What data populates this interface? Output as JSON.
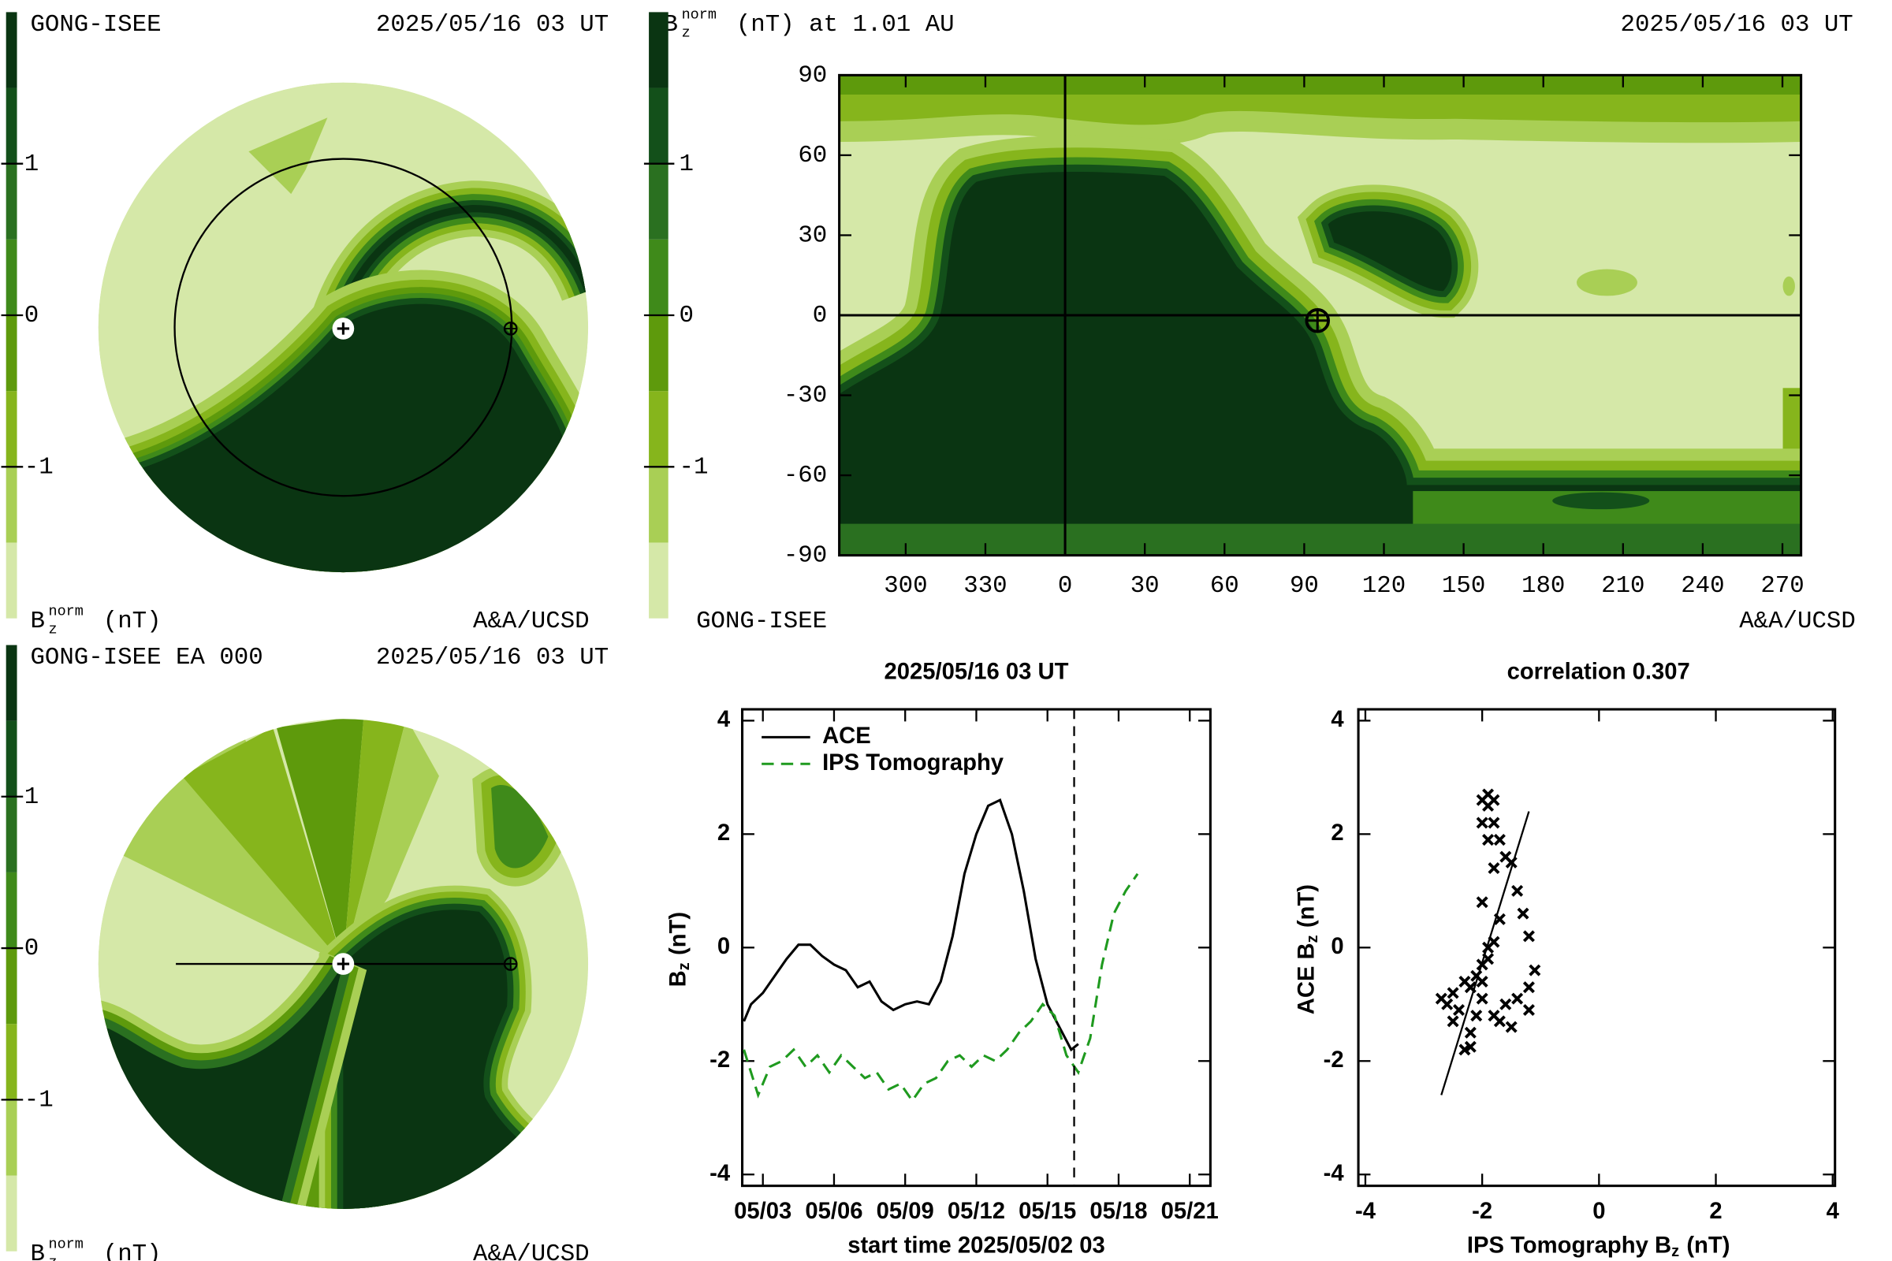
{
  "chart_data": [
    {
      "type": "polar-map",
      "source": "GONG-ISEE",
      "time": "2025/05/16 03 UT",
      "credit": "A&A/UCSD",
      "colorbar": {
        "symbol": "B",
        "sup": "norm",
        "sub": "z",
        "unit": "(nT)",
        "clim": [
          -2,
          2
        ],
        "colors": [
          "#d5e8a8",
          "#a9cf55",
          "#86b51c",
          "#5e9a0c",
          "#3f8a1a",
          "#2a7020",
          "#13501a",
          "#0a3512"
        ],
        "ticks": [
          1,
          0,
          -1
        ]
      }
    },
    {
      "type": "lat-lon-map",
      "title": {
        "symbol": "B",
        "sup": "norm",
        "sub": "z",
        "unit": "(nT) at 1.01 AU"
      },
      "time": "2025/05/16 03 UT",
      "source": "GONG-ISEE",
      "credit": "A&A/UCSD",
      "xlim": [
        -85,
        277
      ],
      "ylim": [
        -90,
        90
      ],
      "xticks": [
        {
          "value": -60,
          "label": "300"
        },
        {
          "value": -30,
          "label": "330"
        },
        0,
        30,
        60,
        90,
        120,
        150,
        180,
        210,
        240,
        270
      ],
      "yticks": [
        90,
        60,
        30,
        0,
        -30,
        -60,
        -90
      ],
      "earth": {
        "lon": 95,
        "lat": -2
      },
      "colorbar": {
        "clim": [
          -2,
          2
        ],
        "colors": [
          "#d5e8a8",
          "#a9cf55",
          "#86b51c",
          "#5e9a0c",
          "#3f8a1a",
          "#2a7020",
          "#13501a",
          "#0a3512"
        ],
        "ticks": [
          1,
          0,
          -1
        ]
      }
    },
    {
      "type": "polar-map",
      "source": "GONG-ISEE EA 000",
      "time": "2025/05/16 03 UT",
      "credit": "A&A/UCSD",
      "colorbar": {
        "symbol": "B",
        "sup": "norm",
        "sub": "z",
        "unit": "(nT)",
        "clim": [
          -2,
          2
        ],
        "colors": [
          "#d5e8a8",
          "#a9cf55",
          "#86b51c",
          "#5e9a0c",
          "#3f8a1a",
          "#2a7020",
          "#13501a",
          "#0a3512"
        ],
        "ticks": [
          1,
          0,
          -1
        ]
      }
    },
    {
      "type": "line",
      "title": "2025/05/16 03 UT",
      "xlabel": "start time 2025/05/02 03",
      "ylabel": {
        "symbol": "B",
        "sub": "z",
        "unit": "(nT)"
      },
      "xlim": [
        2.13,
        21.87
      ],
      "ylim": [
        -4.2,
        4.2
      ],
      "xticks": [
        {
          "value": 3,
          "label": "05/03"
        },
        {
          "value": 6,
          "label": "05/06"
        },
        {
          "value": 9,
          "label": "05/09"
        },
        {
          "value": 12,
          "label": "05/12"
        },
        {
          "value": 15,
          "label": "05/15"
        },
        {
          "value": 18,
          "label": "05/18"
        },
        {
          "value": 21,
          "label": "05/21"
        }
      ],
      "yticks": [
        4,
        2,
        0,
        -2,
        -4
      ],
      "marker_x": 16.125,
      "series": [
        {
          "name": "ACE",
          "color": "#000000",
          "dash": false,
          "x": [
            2.2,
            2.5,
            3.0,
            3.5,
            4.0,
            4.5,
            5.0,
            5.5,
            6.0,
            6.5,
            7.0,
            7.5,
            8.0,
            8.5,
            9.0,
            9.5,
            10.0,
            10.5,
            11.0,
            11.5,
            12.0,
            12.5,
            13.0,
            13.5,
            14.0,
            14.5,
            15.0,
            15.5,
            16.0,
            16.3
          ],
          "values": [
            -1.3,
            -1.0,
            -0.8,
            -0.5,
            -0.2,
            0.05,
            0.05,
            -0.15,
            -0.3,
            -0.4,
            -0.7,
            -0.6,
            -0.95,
            -1.1,
            -1.0,
            -0.95,
            -1.0,
            -0.6,
            0.2,
            1.3,
            2.0,
            2.5,
            2.6,
            2.0,
            1.0,
            -0.2,
            -1.0,
            -1.4,
            -1.8,
            -1.7
          ]
        },
        {
          "name": "IPS Tomography",
          "color": "#1f9a1f",
          "dash": true,
          "x": [
            2.2,
            2.5,
            2.8,
            3.3,
            3.8,
            4.3,
            4.8,
            5.3,
            5.8,
            6.3,
            6.8,
            7.3,
            7.8,
            8.3,
            8.8,
            9.3,
            9.8,
            10.3,
            10.8,
            11.3,
            11.8,
            12.3,
            12.8,
            13.3,
            13.8,
            14.3,
            14.8,
            15.3,
            15.8,
            16.3,
            16.8,
            17.3,
            17.8,
            18.3,
            18.8
          ],
          "values": [
            -1.8,
            -2.2,
            -2.6,
            -2.1,
            -2.0,
            -1.8,
            -2.1,
            -1.9,
            -2.2,
            -1.9,
            -2.1,
            -2.3,
            -2.2,
            -2.5,
            -2.4,
            -2.7,
            -2.4,
            -2.3,
            -2.0,
            -1.9,
            -2.1,
            -1.9,
            -2.0,
            -1.8,
            -1.5,
            -1.3,
            -1.0,
            -1.2,
            -1.9,
            -2.2,
            -1.6,
            -0.3,
            0.6,
            1.0,
            1.3
          ]
        }
      ]
    },
    {
      "type": "scatter",
      "title": "correlation 0.307",
      "xlabel": {
        "symbol": "IPS Tomography B",
        "sub": "z",
        "unit": "(nT)"
      },
      "ylabel": {
        "symbol": "ACE B",
        "sub": "z",
        "unit": "(nT)"
      },
      "xlim": [
        -4.12,
        4.04
      ],
      "ylim": [
        -4.2,
        4.2
      ],
      "xticks": [
        -4,
        -2,
        0,
        2,
        4
      ],
      "yticks": [
        4,
        2,
        0,
        -2,
        -4
      ],
      "color": "#000000",
      "x": [
        -2.7,
        -2.6,
        -2.5,
        -2.4,
        -2.5,
        -2.3,
        -2.2,
        -2.2,
        -2.3,
        -2.2,
        -2.1,
        -2.0,
        -2.0,
        -2.1,
        -1.9,
        -1.9,
        -1.8,
        -1.8,
        -1.7,
        -1.5,
        -1.6,
        -1.4,
        -1.2,
        -1.2,
        -1.1,
        -1.2,
        -1.3,
        -1.4,
        -1.5,
        -1.6,
        -1.7,
        -1.8,
        -1.9,
        -1.9,
        -2.0,
        -1.8,
        -2.0,
        -1.9,
        -1.8,
        -2.0,
        -1.7,
        -2.0
      ],
      "y": [
        -0.9,
        -1.0,
        -0.8,
        -1.1,
        -1.3,
        -0.6,
        -0.7,
        -1.5,
        -1.8,
        -1.75,
        -0.5,
        -0.3,
        -0.9,
        -1.2,
        -0.2,
        0.0,
        0.1,
        -1.2,
        -1.3,
        -1.4,
        -1.0,
        -0.9,
        -1.1,
        -0.7,
        -0.4,
        0.2,
        0.6,
        1.0,
        1.5,
        1.6,
        1.9,
        2.2,
        2.5,
        2.7,
        2.6,
        2.6,
        2.2,
        1.9,
        1.4,
        0.8,
        0.5,
        -0.6
      ],
      "fit": {
        "x": [
          -2.7,
          -1.2
        ],
        "y": [
          -2.6,
          2.4
        ]
      }
    }
  ]
}
